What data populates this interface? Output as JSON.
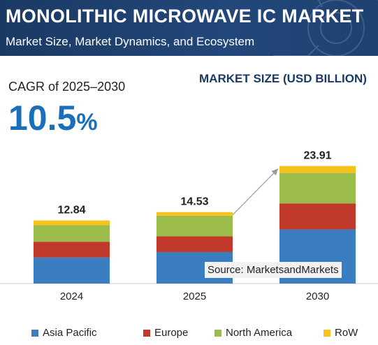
{
  "header": {
    "title": "MONOLITHIC MICROWAVE IC MARKET",
    "subtitle": "Market Size, Market Dynamics, and Ecosystem"
  },
  "cagr": {
    "label": "CAGR of 2025–2030",
    "value": "10.5",
    "unit": "%"
  },
  "size_label": "MARKET SIZE (USD BILLION)",
  "source": "Source: MarketsandMarkets",
  "colors": {
    "Asia Pacific": "#3a7dc1",
    "Europe": "#c0392b",
    "North America": "#9bbb4b",
    "RoW": "#f7c21b",
    "arrow": "#9a9a9a"
  },
  "chart_data": {
    "type": "bar",
    "stacked": true,
    "categories": [
      "2024",
      "2025",
      "2030"
    ],
    "totals": [
      "12.84",
      "14.53",
      "23.91"
    ],
    "series": [
      {
        "name": "Asia Pacific",
        "values": [
          5.3,
          6.4,
          11.0
        ]
      },
      {
        "name": "Europe",
        "values": [
          3.2,
          3.2,
          5.3
        ]
      },
      {
        "name": "North America",
        "values": [
          3.4,
          4.2,
          6.2
        ]
      },
      {
        "name": "RoW",
        "values": [
          0.94,
          0.73,
          1.41
        ]
      }
    ]
  }
}
